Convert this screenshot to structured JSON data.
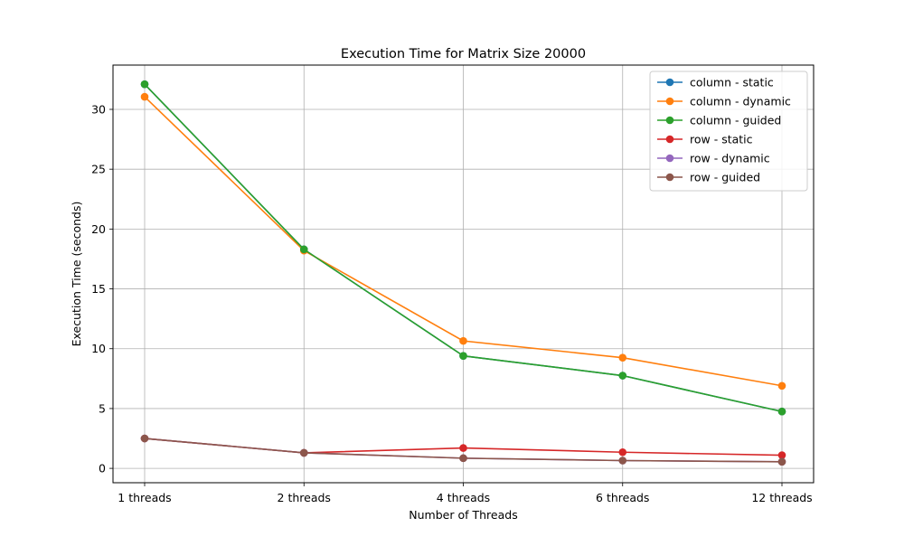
{
  "chart_data": {
    "type": "line",
    "title": "Execution Time for Matrix Size 20000",
    "xlabel": "Number of Threads",
    "ylabel": "Execution Time (seconds)",
    "categories": [
      "1 threads",
      "2 threads",
      "4 threads",
      "6 threads",
      "12 threads"
    ],
    "ylim": [
      -1.2,
      33.7
    ],
    "yticks": [
      0,
      5,
      10,
      15,
      20,
      25,
      30
    ],
    "grid": true,
    "legend_position": "top-right",
    "series": [
      {
        "name": "column - static",
        "color": "#1f77b4",
        "values": [
          32.1,
          18.3,
          9.4,
          7.75,
          4.75
        ]
      },
      {
        "name": "column - dynamic",
        "color": "#ff7f0e",
        "values": [
          31.05,
          18.2,
          10.65,
          9.25,
          6.9
        ]
      },
      {
        "name": "column - guided",
        "color": "#2ca02c",
        "values": [
          32.1,
          18.3,
          9.4,
          7.75,
          4.75
        ]
      },
      {
        "name": "row - static",
        "color": "#d62728",
        "values": [
          2.5,
          1.3,
          1.7,
          1.35,
          1.1
        ]
      },
      {
        "name": "row - dynamic",
        "color": "#9467bd",
        "values": [
          2.5,
          1.3,
          0.85,
          0.65,
          0.55
        ]
      },
      {
        "name": "row - guided",
        "color": "#8c564b",
        "values": [
          2.5,
          1.3,
          0.85,
          0.65,
          0.55
        ]
      }
    ]
  }
}
